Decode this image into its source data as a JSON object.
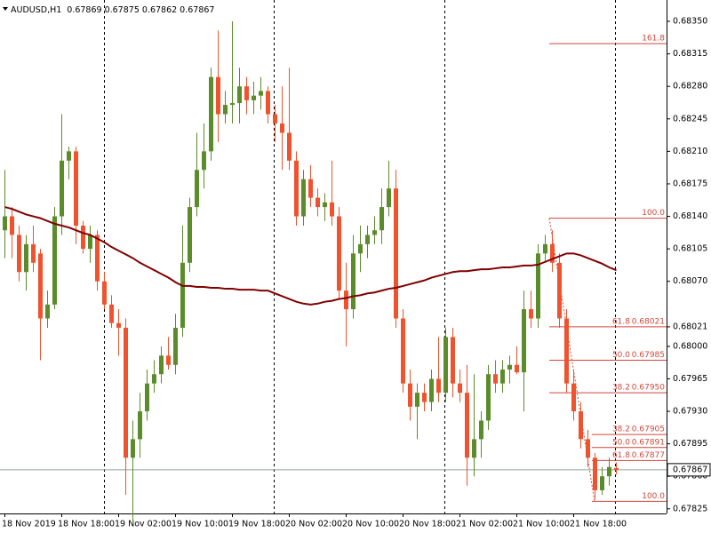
{
  "chart_data": {
    "type": "candlestick",
    "title": "AUDUSD,H1",
    "bull_color": "#5b8c2a",
    "bear_color": "#f0522d",
    "ma_color": "#800000",
    "fib_color": "#d0473a",
    "ylim": [
      0.6782,
      0.68373
    ],
    "yticks": [
      {
        "value": 0.6835,
        "label": "0.68350"
      },
      0.68315,
      {
        "value": 0.6828,
        "label": "0.68280"
      },
      0.68245,
      {
        "value": 0.6821,
        "label": "0.68210"
      },
      0.68175,
      {
        "value": 0.6814,
        "label": "0.68140"
      },
      0.68105,
      {
        "value": 0.6807,
        "label": "0.68070"
      },
      0.68021,
      {
        "value": 0.68,
        "label": "0.68000"
      },
      0.67965,
      {
        "value": 0.6793,
        "label": "0.67930"
      },
      0.67895,
      {
        "value": 0.6786,
        "label": "0.67860"
      },
      0.67825
    ],
    "x_labels": [
      "18 Nov 2019",
      "18 Nov 18:00",
      "19 Nov 02:00",
      "19 Nov 10:00",
      "19 Nov 18:00",
      "20 Nov 02:00",
      "20 Nov 10:00",
      "20 Nov 18:00",
      "21 Nov 02:00",
      "21 Nov 10:00",
      "21 Nov 18:00"
    ],
    "ohlc": [
      [
        0.68125,
        0.6819,
        0.68095,
        0.6814
      ],
      [
        0.6814,
        0.6815,
        0.68095,
        0.6812
      ],
      [
        0.6812,
        0.6813,
        0.6807,
        0.6808
      ],
      [
        0.6808,
        0.6812,
        0.6806,
        0.6811
      ],
      [
        0.6811,
        0.6813,
        0.6808,
        0.6809
      ],
      [
        0.681,
        0.68105,
        0.67985,
        0.6803
      ],
      [
        0.6803,
        0.6806,
        0.6802,
        0.68045
      ],
      [
        0.68045,
        0.6815,
        0.6804,
        0.6814
      ],
      [
        0.6814,
        0.6825,
        0.6812,
        0.682
      ],
      [
        0.682,
        0.68215,
        0.6818,
        0.6821
      ],
      [
        0.6821,
        0.68215,
        0.6811,
        0.6813
      ],
      [
        0.6813,
        0.68135,
        0.681,
        0.68105
      ],
      [
        0.68105,
        0.6813,
        0.6809,
        0.6812
      ],
      [
        0.6812,
        0.68125,
        0.6806,
        0.6807
      ],
      [
        0.6807,
        0.6808,
        0.6804,
        0.68045
      ],
      [
        0.68045,
        0.68055,
        0.6802,
        0.68025
      ],
      [
        0.68025,
        0.6804,
        0.6799,
        0.6802
      ],
      [
        0.6802,
        0.6803,
        0.6784,
        0.6788
      ],
      [
        0.6788,
        0.6792,
        0.6781,
        0.679
      ],
      [
        0.679,
        0.6795,
        0.6788,
        0.6793
      ],
      [
        0.6793,
        0.67975,
        0.6792,
        0.6796
      ],
      [
        0.6796,
        0.67985,
        0.6795,
        0.6797
      ],
      [
        0.6797,
        0.68,
        0.6796,
        0.6799
      ],
      [
        0.6799,
        0.6801,
        0.67975,
        0.6798
      ],
      [
        0.6798,
        0.68035,
        0.6797,
        0.6802
      ],
      [
        0.6802,
        0.6813,
        0.6801,
        0.6809
      ],
      [
        0.6809,
        0.6816,
        0.6808,
        0.6815
      ],
      [
        0.6815,
        0.6823,
        0.6814,
        0.6819
      ],
      [
        0.6819,
        0.6824,
        0.6817,
        0.6821
      ],
      [
        0.6821,
        0.683,
        0.682,
        0.6829
      ],
      [
        0.6829,
        0.6834,
        0.6822,
        0.6825
      ],
      [
        0.6825,
        0.68275,
        0.6824,
        0.6826
      ],
      [
        0.6826,
        0.6835,
        0.6824,
        0.68262
      ],
      [
        0.68262,
        0.683,
        0.6824,
        0.6828
      ],
      [
        0.6828,
        0.6829,
        0.6825,
        0.68265
      ],
      [
        0.68265,
        0.68285,
        0.6825,
        0.6827
      ],
      [
        0.6827,
        0.6829,
        0.68255,
        0.68275
      ],
      [
        0.68275,
        0.6828,
        0.6824,
        0.6825
      ],
      [
        0.6825,
        0.6826,
        0.6822,
        0.6824
      ],
      [
        0.6824,
        0.6828,
        0.6819,
        0.6823
      ],
      [
        0.6823,
        0.683,
        0.6819,
        0.682
      ],
      [
        0.682,
        0.6821,
        0.6813,
        0.6814
      ],
      [
        0.6814,
        0.6819,
        0.6813,
        0.6818
      ],
      [
        0.6818,
        0.68195,
        0.6815,
        0.6816
      ],
      [
        0.6816,
        0.6817,
        0.6814,
        0.6815
      ],
      [
        0.6815,
        0.68165,
        0.68135,
        0.68155
      ],
      [
        0.68155,
        0.682,
        0.6813,
        0.6814
      ],
      [
        0.6814,
        0.6815,
        0.6805,
        0.6806
      ],
      [
        0.6806,
        0.6809,
        0.68,
        0.6804
      ],
      [
        0.6804,
        0.6812,
        0.6803,
        0.681
      ],
      [
        0.681,
        0.6813,
        0.6808,
        0.6811
      ],
      [
        0.6811,
        0.6813,
        0.68095,
        0.6812
      ],
      [
        0.6812,
        0.6814,
        0.6811,
        0.68125
      ],
      [
        0.68125,
        0.6817,
        0.6811,
        0.6815
      ],
      [
        0.6815,
        0.682,
        0.6814,
        0.6817
      ],
      [
        0.6817,
        0.6819,
        0.6802,
        0.6803
      ],
      [
        0.6803,
        0.6804,
        0.6795,
        0.6796
      ],
      [
        0.6796,
        0.67975,
        0.6792,
        0.67935
      ],
      [
        0.67935,
        0.6796,
        0.679,
        0.6795
      ],
      [
        0.6795,
        0.6796,
        0.6793,
        0.6794
      ],
      [
        0.6794,
        0.67975,
        0.6793,
        0.67965
      ],
      [
        0.67965,
        0.6801,
        0.6794,
        0.6795
      ],
      [
        0.6795,
        0.6802,
        0.6794,
        0.6801
      ],
      [
        0.6801,
        0.6802,
        0.67945,
        0.6796
      ],
      [
        0.6796,
        0.67975,
        0.6794,
        0.6795
      ],
      [
        0.6795,
        0.6798,
        0.6785,
        0.6788
      ],
      [
        0.6788,
        0.6797,
        0.6786,
        0.679
      ],
      [
        0.679,
        0.6793,
        0.6788,
        0.6792
      ],
      [
        0.6792,
        0.6798,
        0.6791,
        0.6797
      ],
      [
        0.6797,
        0.67985,
        0.6795,
        0.6796
      ],
      [
        0.6796,
        0.67985,
        0.6795,
        0.67975
      ],
      [
        0.67975,
        0.6799,
        0.6796,
        0.6798
      ],
      [
        0.6798,
        0.68,
        0.6797,
        0.67972
      ],
      [
        0.67972,
        0.6806,
        0.6793,
        0.6804
      ],
      [
        0.6804,
        0.6806,
        0.6802,
        0.6803
      ],
      [
        0.6803,
        0.6811,
        0.6802,
        0.681
      ],
      [
        0.681,
        0.6812,
        0.6809,
        0.6811
      ],
      [
        0.6811,
        0.68125,
        0.6808,
        0.6809
      ],
      [
        0.6809,
        0.681,
        0.6802,
        0.6803
      ],
      [
        0.6803,
        0.6804,
        0.6795,
        0.6796
      ],
      [
        0.6796,
        0.67975,
        0.6792,
        0.6793
      ],
      [
        0.6793,
        0.6794,
        0.6789,
        0.679
      ],
      [
        0.679,
        0.6791,
        0.6787,
        0.6788
      ],
      [
        0.6788,
        0.67885,
        0.67835,
        0.67845
      ],
      [
        0.67845,
        0.6787,
        0.6784,
        0.6786
      ],
      [
        0.6786,
        0.6788,
        0.6785,
        0.6787
      ],
      [
        0.67869,
        0.67875,
        0.67862,
        0.67867
      ]
    ],
    "ma": [
      0.6815,
      0.68148,
      0.68145,
      0.68142,
      0.6814,
      0.68138,
      0.68135,
      0.68132,
      0.6813,
      0.68128,
      0.68125,
      0.68122,
      0.6812,
      0.68116,
      0.68112,
      0.68107,
      0.68103,
      0.68099,
      0.68095,
      0.6809,
      0.68086,
      0.68082,
      0.68078,
      0.68074,
      0.68069,
      0.68065,
      0.68065,
      0.68064,
      0.68064,
      0.68063,
      0.68063,
      0.68062,
      0.68062,
      0.68061,
      0.68061,
      0.68061,
      0.6806,
      0.6806,
      0.68057,
      0.68054,
      0.68051,
      0.68048,
      0.68046,
      0.68045,
      0.68046,
      0.68048,
      0.68049,
      0.68051,
      0.68052,
      0.68054,
      0.68055,
      0.68057,
      0.68058,
      0.6806,
      0.68062,
      0.68063,
      0.68065,
      0.68067,
      0.68069,
      0.68071,
      0.68074,
      0.68076,
      0.68078,
      0.6808,
      0.68081,
      0.68081,
      0.68082,
      0.68083,
      0.68083,
      0.68084,
      0.68085,
      0.68085,
      0.68086,
      0.68087,
      0.68087,
      0.68088,
      0.68091,
      0.68094,
      0.68097,
      0.681,
      0.681,
      0.68098,
      0.68095,
      0.68092,
      0.68089,
      0.68085,
      0.68082
    ],
    "fibs": [
      {
        "start": 77,
        "levels": [
          {
            "level": "161.8",
            "price": 0.68326
          },
          {
            "level": "100.0",
            "price": 0.68138
          },
          {
            "level": "61.8",
            "price": 0.68021,
            "label": "0.68021"
          },
          {
            "level": "50.0",
            "price": 0.67985,
            "label": "0.67985"
          },
          {
            "level": "38.2",
            "price": 0.6795,
            "label": "0.67950"
          }
        ]
      },
      {
        "start": 83,
        "levels": [
          {
            "level": "38.2",
            "price": 0.67905,
            "label": "0.67905"
          },
          {
            "level": "50.0",
            "price": 0.67891,
            "label": "0.67891"
          },
          {
            "level": "61.8",
            "price": 0.67877,
            "label": "0.67877"
          },
          {
            "level": "100.0",
            "price": 0.67833
          }
        ]
      }
    ]
  }
}
